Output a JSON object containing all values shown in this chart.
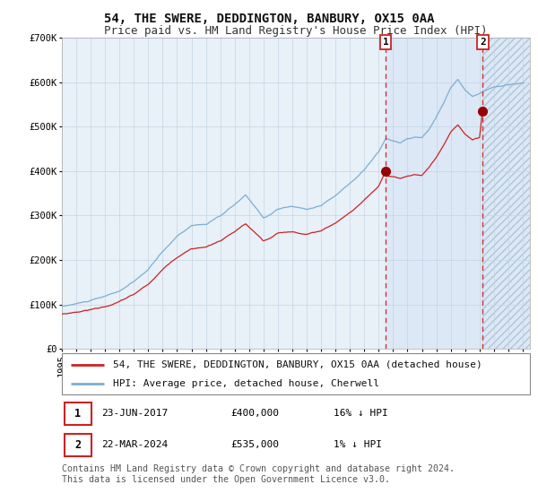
{
  "title": "54, THE SWERE, DEDDINGTON, BANBURY, OX15 0AA",
  "subtitle": "Price paid vs. HM Land Registry's House Price Index (HPI)",
  "ylim": [
    0,
    700000
  ],
  "xlim_start": 1995.0,
  "xlim_end": 2027.5,
  "yticks": [
    0,
    100000,
    200000,
    300000,
    400000,
    500000,
    600000,
    700000
  ],
  "ytick_labels": [
    "£0",
    "£100K",
    "£200K",
    "£300K",
    "£400K",
    "£500K",
    "£600K",
    "£700K"
  ],
  "plot_bg_color": "#e8f0f8",
  "shade_color": "#d8e8f5",
  "hatch_region_start": 2024.23,
  "shade_region_start": 2017.48,
  "vline1_x": 2017.48,
  "vline2_x": 2024.23,
  "marker1_x": 2017.48,
  "marker1_y": 400000,
  "marker2_x": 2024.23,
  "marker2_y": 535000,
  "hpi_line_color": "#7bafd4",
  "price_line_color": "#cc2222",
  "marker_color": "#990000",
  "vline_color": "#cc3333",
  "grid_color": "#c5d5e5",
  "legend1_label": "54, THE SWERE, DEDDINGTON, BANBURY, OX15 0AA (detached house)",
  "legend2_label": "HPI: Average price, detached house, Cherwell",
  "table_row1": [
    "1",
    "23-JUN-2017",
    "£400,000",
    "16% ↓ HPI"
  ],
  "table_row2": [
    "2",
    "22-MAR-2024",
    "£535,000",
    "1% ↓ HPI"
  ],
  "footer": "Contains HM Land Registry data © Crown copyright and database right 2024.\nThis data is licensed under the Open Government Licence v3.0.",
  "title_fontsize": 10,
  "subtitle_fontsize": 9,
  "tick_fontsize": 7.5,
  "legend_fontsize": 8
}
